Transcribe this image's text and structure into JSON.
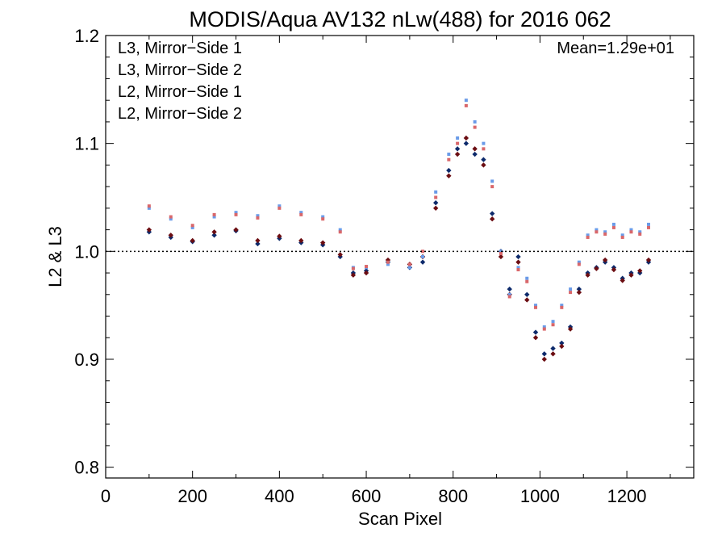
{
  "chart_data": {
    "type": "scatter",
    "title": "MODIS/Aqua AV132 nLw(488) for 2016 062",
    "xlabel": "Scan Pixel",
    "ylabel": "L2 & L3",
    "xlim": [
      0,
      1354
    ],
    "ylim": [
      0.79,
      1.2
    ],
    "xticks": [
      "0",
      "200",
      "400",
      "600",
      "800",
      "1000",
      "1200"
    ],
    "yticks": [
      "0.8",
      "0.9",
      "1.0",
      "1.1",
      "1.2"
    ],
    "reference_line": 1.0,
    "annotation": "Mean=1.29e+01",
    "annotation_color": "#d9676a",
    "legend_position": "top-left",
    "grid": false,
    "series": [
      {
        "name": "L3, Mirror−Side 1",
        "color": "#0d2a6b",
        "x": [
          100,
          150,
          200,
          250,
          300,
          350,
          400,
          450,
          500,
          540,
          570,
          600,
          650,
          700,
          730,
          760,
          790,
          810,
          830,
          850,
          870,
          890,
          910,
          930,
          950,
          970,
          990,
          1010,
          1030,
          1050,
          1070,
          1090,
          1110,
          1130,
          1150,
          1170,
          1190,
          1210,
          1230,
          1250
        ],
        "y": [
          1.018,
          1.013,
          1.009,
          1.015,
          1.019,
          1.007,
          1.012,
          1.008,
          1.006,
          0.995,
          0.98,
          0.982,
          0.99,
          0.985,
          0.99,
          1.045,
          1.075,
          1.095,
          1.1,
          1.09,
          1.085,
          1.035,
          1.0,
          0.965,
          0.995,
          0.96,
          0.925,
          0.905,
          0.91,
          0.915,
          0.93,
          0.965,
          0.98,
          0.985,
          0.99,
          0.985,
          0.975,
          0.98,
          0.98,
          0.99
        ]
      },
      {
        "name": "L3, Mirror−Side 2",
        "color": "#6b0d12",
        "x": [
          100,
          150,
          200,
          250,
          300,
          350,
          400,
          450,
          500,
          540,
          570,
          600,
          650,
          700,
          730,
          760,
          790,
          810,
          830,
          850,
          870,
          890,
          910,
          930,
          950,
          970,
          990,
          1010,
          1030,
          1050,
          1070,
          1090,
          1110,
          1130,
          1150,
          1170,
          1190,
          1210,
          1230,
          1250
        ],
        "y": [
          1.02,
          1.015,
          1.01,
          1.018,
          1.02,
          1.01,
          1.014,
          1.01,
          1.008,
          0.997,
          0.978,
          0.98,
          0.992,
          0.988,
          0.995,
          1.04,
          1.07,
          1.09,
          1.105,
          1.095,
          1.08,
          1.03,
          0.995,
          0.96,
          0.99,
          0.955,
          0.92,
          0.9,
          0.905,
          0.912,
          0.928,
          0.962,
          0.978,
          0.984,
          0.992,
          0.983,
          0.973,
          0.978,
          0.982,
          0.992
        ]
      },
      {
        "name": "L2, Mirror−Side 1",
        "color": "#6a9be8",
        "x": [
          100,
          150,
          200,
          250,
          300,
          350,
          400,
          450,
          500,
          540,
          570,
          600,
          650,
          700,
          730,
          760,
          790,
          810,
          830,
          850,
          870,
          890,
          910,
          930,
          950,
          970,
          990,
          1010,
          1030,
          1050,
          1070,
          1090,
          1110,
          1130,
          1150,
          1170,
          1190,
          1210,
          1230,
          1250
        ],
        "y": [
          1.04,
          1.03,
          1.022,
          1.032,
          1.036,
          1.033,
          1.042,
          1.036,
          1.032,
          1.02,
          0.985,
          0.985,
          0.988,
          0.985,
          0.995,
          1.055,
          1.09,
          1.105,
          1.14,
          1.12,
          1.1,
          1.065,
          1.0,
          0.96,
          0.985,
          0.975,
          0.95,
          0.93,
          0.935,
          0.95,
          0.965,
          0.99,
          1.015,
          1.02,
          1.018,
          1.025,
          1.015,
          1.02,
          1.018,
          1.025
        ]
      },
      {
        "name": "L2, Mirror−Side 2",
        "color": "#d9676a",
        "x": [
          100,
          150,
          200,
          250,
          300,
          350,
          400,
          450,
          500,
          540,
          570,
          600,
          650,
          700,
          730,
          760,
          790,
          810,
          830,
          850,
          870,
          890,
          910,
          930,
          950,
          970,
          990,
          1010,
          1030,
          1050,
          1070,
          1090,
          1110,
          1130,
          1150,
          1170,
          1190,
          1210,
          1230,
          1250
        ],
        "y": [
          1.042,
          1.032,
          1.024,
          1.034,
          1.034,
          1.031,
          1.04,
          1.034,
          1.03,
          1.018,
          0.984,
          0.986,
          0.99,
          0.988,
          1.0,
          1.05,
          1.085,
          1.1,
          1.135,
          1.115,
          1.095,
          1.06,
          0.998,
          0.958,
          0.983,
          0.972,
          0.948,
          0.928,
          0.932,
          0.948,
          0.962,
          0.988,
          1.013,
          1.018,
          1.016,
          1.022,
          1.013,
          1.018,
          1.016,
          1.022
        ]
      }
    ]
  }
}
